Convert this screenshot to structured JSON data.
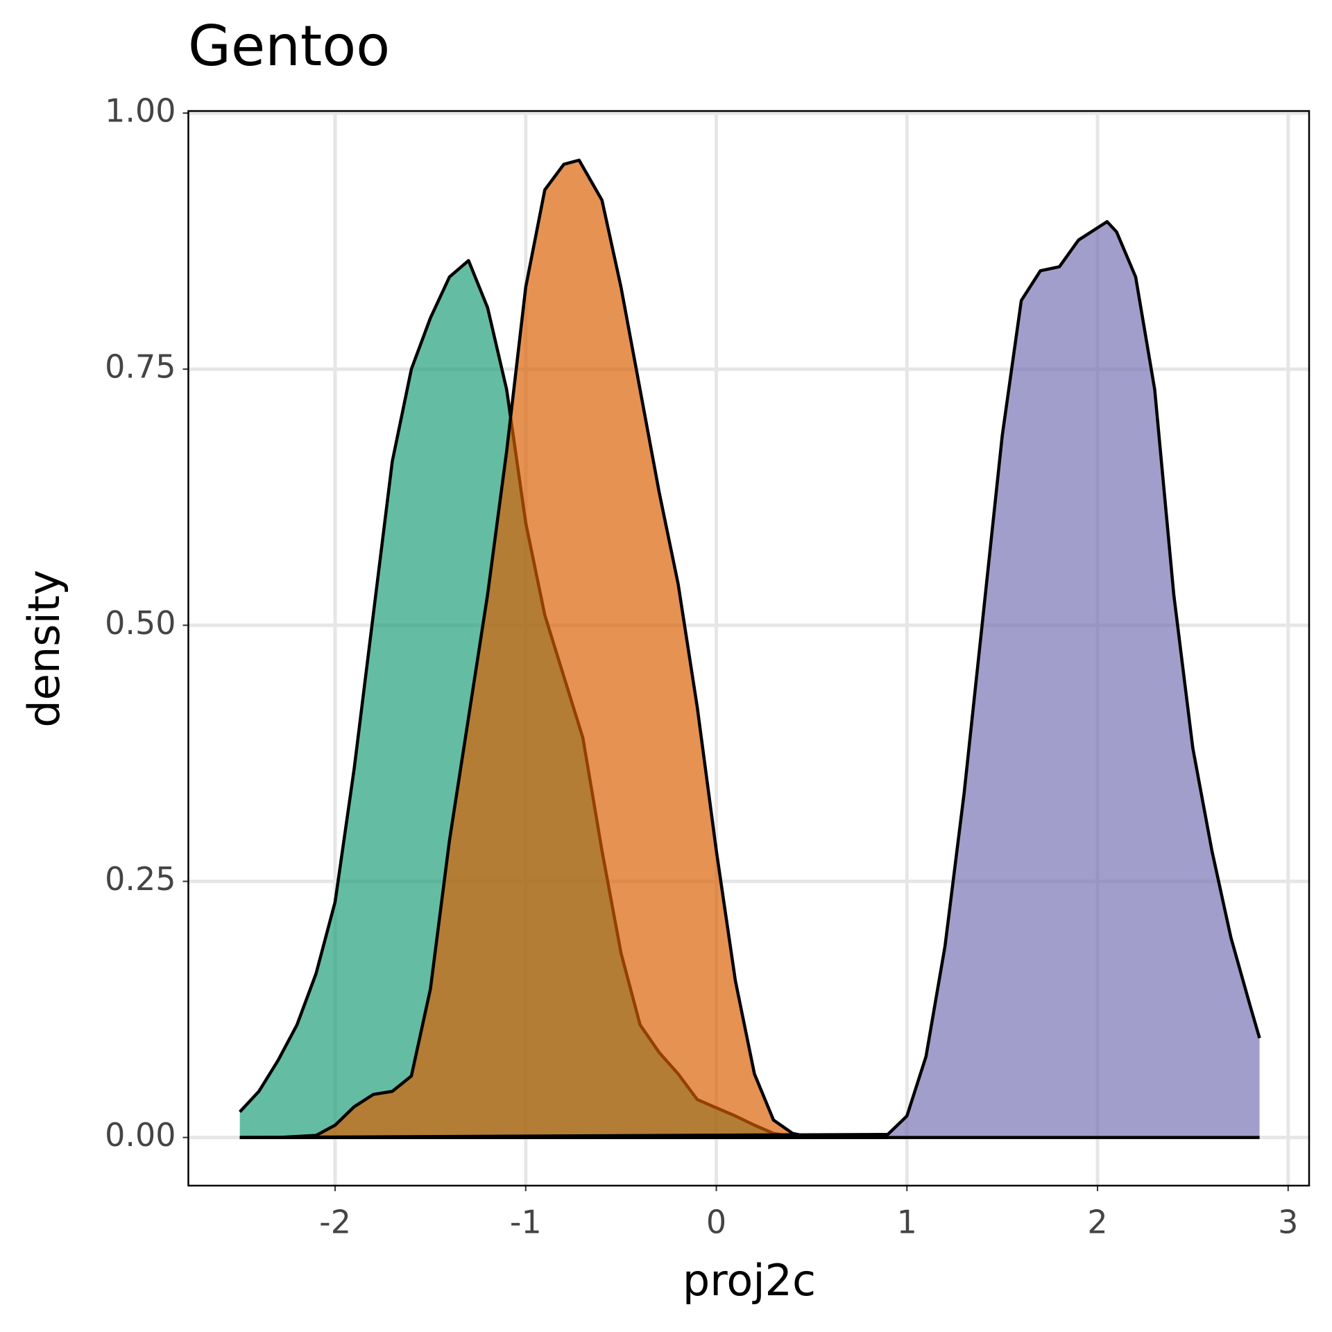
{
  "chart_data": {
    "type": "density",
    "title": "Gentoo",
    "xlabel": "proj2c",
    "ylabel": "density",
    "xlim": [
      -2.77,
      3.11
    ],
    "ylim": [
      -0.047,
      1.002
    ],
    "xticks": [
      -2,
      -1,
      0,
      1,
      2,
      3
    ],
    "yticks": [
      {
        "value": 0,
        "label": "0.00"
      },
      {
        "value": 0.25,
        "label": "0.25"
      },
      {
        "value": 0.5,
        "label": "0.50"
      },
      {
        "value": 0.75,
        "label": "0.75"
      },
      {
        "value": 1,
        "label": "1.00"
      }
    ],
    "grid": true,
    "series": [
      {
        "color": "#1b9e77",
        "x": [
          -2.5,
          -2.4,
          -2.3,
          -2.2,
          -2.1,
          -2.0,
          -1.9,
          -1.8,
          -1.7,
          -1.6,
          -1.5,
          -1.4,
          -1.3,
          -1.2,
          -1.1,
          -1.0,
          -0.9,
          -0.8,
          -0.7,
          -0.6,
          -0.5,
          -0.4,
          -0.3,
          -0.2,
          -0.1,
          0.0,
          0.1,
          0.2,
          0.3,
          0.4,
          0.5
        ],
        "values": [
          0.025,
          0.045,
          0.075,
          0.11,
          0.16,
          0.23,
          0.36,
          0.51,
          0.66,
          0.75,
          0.8,
          0.84,
          0.856,
          0.81,
          0.73,
          0.6,
          0.51,
          0.45,
          0.39,
          0.28,
          0.18,
          0.11,
          0.083,
          0.062,
          0.037,
          0.029,
          0.021,
          0.012,
          0.004,
          0.001,
          0
        ]
      },
      {
        "color": "#d95f02",
        "x": [
          -2.5,
          -2.3,
          -2.1,
          -2.0,
          -1.9,
          -1.8,
          -1.7,
          -1.6,
          -1.5,
          -1.4,
          -1.3,
          -1.2,
          -1.1,
          -1.0,
          -0.9,
          -0.8,
          -0.72,
          -0.6,
          -0.5,
          -0.4,
          -0.3,
          -0.2,
          -0.1,
          0.0,
          0.1,
          0.2,
          0.3,
          0.4,
          0.5,
          0.9
        ],
        "values": [
          0,
          0,
          0.002,
          0.012,
          0.03,
          0.042,
          0.045,
          0.06,
          0.145,
          0.29,
          0.41,
          0.53,
          0.67,
          0.83,
          0.925,
          0.95,
          0.954,
          0.915,
          0.83,
          0.73,
          0.63,
          0.54,
          0.42,
          0.28,
          0.153,
          0.062,
          0.017,
          0.004,
          0,
          0
        ]
      },
      {
        "color": "#7570b3",
        "x": [
          -2.5,
          0.9,
          1.0,
          1.1,
          1.2,
          1.3,
          1.4,
          1.5,
          1.6,
          1.7,
          1.8,
          1.9,
          2.05,
          2.1,
          2.2,
          2.3,
          2.4,
          2.5,
          2.6,
          2.7,
          2.8,
          2.85
        ],
        "values": [
          0,
          0.003,
          0.021,
          0.079,
          0.187,
          0.336,
          0.51,
          0.685,
          0.817,
          0.846,
          0.85,
          0.876,
          0.894,
          0.884,
          0.84,
          0.73,
          0.53,
          0.38,
          0.28,
          0.195,
          0.129,
          0.097
        ]
      }
    ]
  }
}
